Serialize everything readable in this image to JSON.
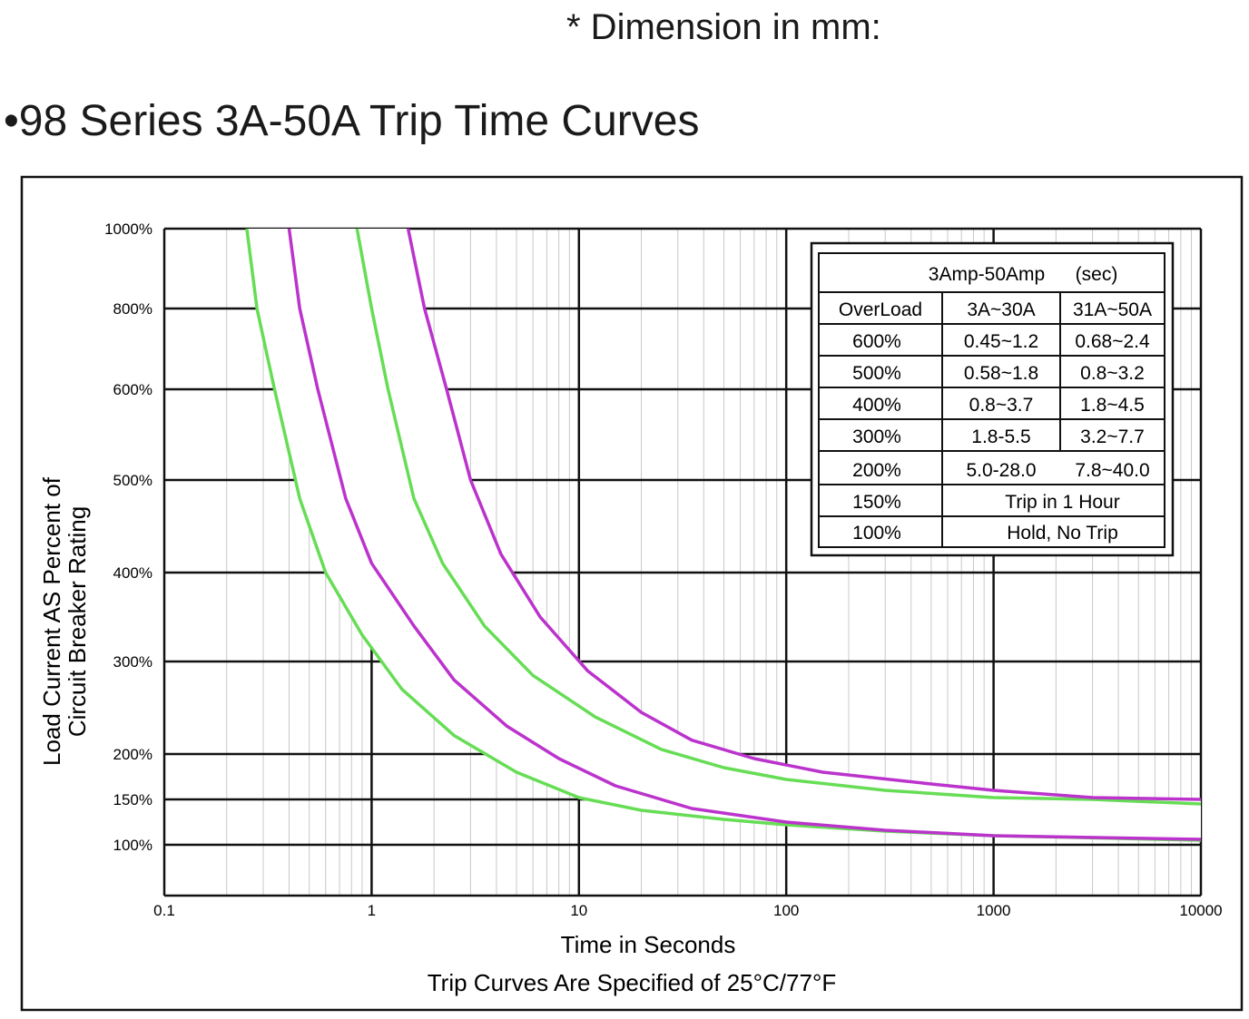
{
  "header": {
    "dimension_note": "* Dimension in mm:",
    "title": "•98 Series 3A-50A Trip Time Curves"
  },
  "chart_data": {
    "type": "line",
    "xscale": "log",
    "xlim": [
      0.1,
      10000
    ],
    "ylim": [
      70,
      1000
    ],
    "grid": true,
    "xlabel": "Time in Seconds",
    "xlabel_sub": "Trip Curves Are Specified of 25°C/77°F",
    "ylabel_lines": [
      "Load Current AS Percent of",
      "Circuit Breaker Rating"
    ],
    "x_ticks": [
      {
        "value": 0.1,
        "label": "0.1"
      },
      {
        "value": 1,
        "label": "1"
      },
      {
        "value": 10,
        "label": "10"
      },
      {
        "value": 100,
        "label": "100"
      },
      {
        "value": 1000,
        "label": "1000"
      },
      {
        "value": 10000,
        "label": "10000"
      }
    ],
    "y_ticks": [
      {
        "value": 1000,
        "label": "1000%"
      },
      {
        "value": 800,
        "label": "800%"
      },
      {
        "value": 600,
        "label": "600%"
      },
      {
        "value": 500,
        "label": "500%"
      },
      {
        "value": 400,
        "label": "400%"
      },
      {
        "value": 300,
        "label": "300%"
      },
      {
        "value": 200,
        "label": "200%"
      },
      {
        "value": 150,
        "label": "150%"
      },
      {
        "value": 100,
        "label": "100%"
      }
    ],
    "colors": {
      "green": "#66dd55",
      "magenta": "#bb33cc",
      "band": "#ffffff",
      "grid": "#111111",
      "minor_grid": "#c8c8c8"
    },
    "series": [
      {
        "color": "green",
        "points": [
          [
            0.25,
            1000
          ],
          [
            0.28,
            800
          ],
          [
            0.34,
            600
          ],
          [
            0.45,
            480
          ],
          [
            0.6,
            400
          ],
          [
            0.9,
            330
          ],
          [
            1.4,
            270
          ],
          [
            2.5,
            220
          ],
          [
            5,
            180
          ],
          [
            10,
            152
          ],
          [
            20,
            138
          ],
          [
            50,
            128
          ],
          [
            100,
            122
          ],
          [
            300,
            115
          ],
          [
            1000,
            110
          ],
          [
            10000,
            105
          ]
        ]
      },
      {
        "color": "magenta",
        "points": [
          [
            0.4,
            1000
          ],
          [
            0.45,
            800
          ],
          [
            0.55,
            600
          ],
          [
            0.75,
            480
          ],
          [
            1.0,
            410
          ],
          [
            1.6,
            340
          ],
          [
            2.5,
            280
          ],
          [
            4.5,
            230
          ],
          [
            8,
            195
          ],
          [
            15,
            165
          ],
          [
            35,
            140
          ],
          [
            100,
            125
          ],
          [
            300,
            116
          ],
          [
            1000,
            110
          ],
          [
            10000,
            106
          ]
        ]
      },
      {
        "color": "green",
        "points": [
          [
            0.85,
            1000
          ],
          [
            1.0,
            800
          ],
          [
            1.2,
            600
          ],
          [
            1.6,
            480
          ],
          [
            2.2,
            410
          ],
          [
            3.5,
            340
          ],
          [
            6,
            285
          ],
          [
            12,
            240
          ],
          [
            25,
            205
          ],
          [
            50,
            185
          ],
          [
            100,
            172
          ],
          [
            300,
            160
          ],
          [
            1000,
            152
          ],
          [
            3000,
            150
          ],
          [
            10000,
            145
          ]
        ]
      },
      {
        "color": "magenta",
        "points": [
          [
            1.5,
            1000
          ],
          [
            1.8,
            800
          ],
          [
            2.3,
            600
          ],
          [
            3,
            500
          ],
          [
            4.2,
            420
          ],
          [
            6.5,
            350
          ],
          [
            11,
            290
          ],
          [
            20,
            245
          ],
          [
            35,
            215
          ],
          [
            70,
            195
          ],
          [
            150,
            180
          ],
          [
            500,
            167
          ],
          [
            1000,
            160
          ],
          [
            3000,
            152
          ],
          [
            10000,
            150
          ]
        ]
      }
    ],
    "table": {
      "header": {
        "range": "3Amp-50Amp",
        "unit": "(sec)"
      },
      "columns": [
        "OverLoad",
        "3A~30A",
        "31A~50A"
      ],
      "rows": [
        {
          "load": "600%",
          "a": "0.45~1.2",
          "b": "0.68~2.4"
        },
        {
          "load": "500%",
          "a": "0.58~1.8",
          "b": "0.8~3.2"
        },
        {
          "load": "400%",
          "a": "0.8~3.7",
          "b": "1.8~4.5"
        },
        {
          "load": "300%",
          "a": "1.8-5.5",
          "b": "3.2~7.7"
        },
        {
          "load": "200%",
          "a": "5.0-28.0",
          "b": "7.8~40.0"
        },
        {
          "load": "150%",
          "merged": "Trip in 1 Hour"
        },
        {
          "load": "100%",
          "merged": "Hold, No Trip"
        }
      ]
    }
  }
}
